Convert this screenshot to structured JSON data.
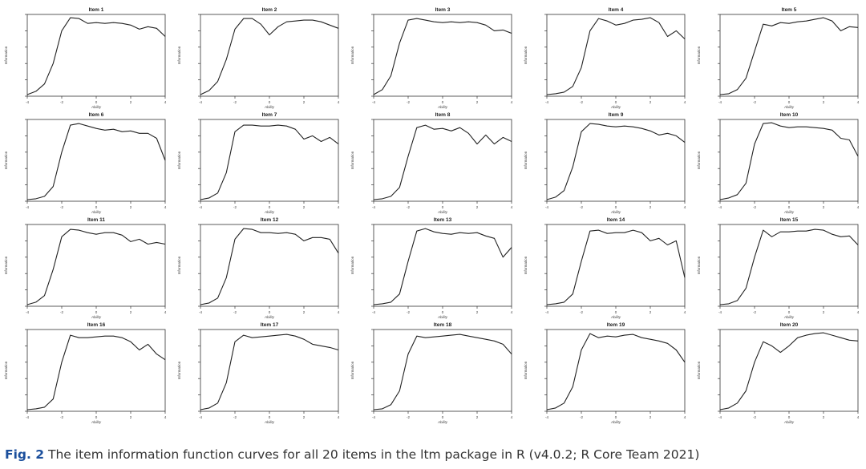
{
  "figure": {
    "caption_label": "Fig. 2",
    "caption_text": "The item information function curves for all 20 items in the ltm package in R (v4.0.2; R Core Team 2021)"
  },
  "colors": {
    "caption_label": "#1b4f9c",
    "caption_text": "#333333",
    "curve": "#222222",
    "axis": "#333333"
  },
  "chart_data": [
    {
      "type": "line",
      "title": "Item 1",
      "xlabel": "Ability",
      "ylabel": "Information",
      "xlim": [
        -4,
        4
      ],
      "ylim": [
        0,
        1
      ],
      "xticks": [
        -4,
        -2,
        0,
        2,
        4
      ],
      "x": [
        -4,
        -3.5,
        -3,
        -2.5,
        -2,
        -1.5,
        -1,
        -0.5,
        0,
        0.5,
        1,
        1.5,
        2,
        2.5,
        3,
        3.5,
        4
      ],
      "y": [
        0.02,
        0.06,
        0.15,
        0.4,
        0.8,
        0.96,
        0.95,
        0.89,
        0.9,
        0.89,
        0.9,
        0.89,
        0.87,
        0.82,
        0.85,
        0.83,
        0.73
      ]
    },
    {
      "type": "line",
      "title": "Item 2",
      "xlabel": "Ability",
      "ylabel": "Information",
      "xlim": [
        -4,
        4
      ],
      "ylim": [
        0,
        1
      ],
      "xticks": [
        -4,
        -2,
        0,
        2,
        4
      ],
      "x": [
        -4,
        -3.5,
        -3,
        -2.5,
        -2,
        -1.5,
        -1,
        -0.5,
        0,
        0.5,
        1,
        1.5,
        2,
        2.5,
        3,
        3.5,
        4
      ],
      "y": [
        0.02,
        0.07,
        0.18,
        0.45,
        0.82,
        0.95,
        0.95,
        0.88,
        0.75,
        0.85,
        0.91,
        0.92,
        0.93,
        0.93,
        0.91,
        0.87,
        0.83
      ]
    },
    {
      "type": "line",
      "title": "Item 3",
      "xlabel": "Ability",
      "ylabel": "Information",
      "xlim": [
        -4,
        4
      ],
      "ylim": [
        0,
        1
      ],
      "xticks": [
        -4,
        -2,
        0,
        2,
        4
      ],
      "x": [
        -4,
        -3.5,
        -3,
        -2.5,
        -2,
        -1.5,
        -1,
        -0.5,
        0,
        0.5,
        1,
        1.5,
        2,
        2.5,
        3,
        3.5,
        4
      ],
      "y": [
        0.02,
        0.08,
        0.25,
        0.65,
        0.93,
        0.95,
        0.93,
        0.91,
        0.9,
        0.91,
        0.9,
        0.91,
        0.9,
        0.87,
        0.8,
        0.81,
        0.77
      ]
    },
    {
      "type": "line",
      "title": "Item 4",
      "xlabel": "Ability",
      "ylabel": "Information",
      "xlim": [
        -4,
        4
      ],
      "ylim": [
        0,
        1
      ],
      "xticks": [
        -4,
        -2,
        0,
        2,
        4
      ],
      "x": [
        -4,
        -3.5,
        -3,
        -2.5,
        -2,
        -1.5,
        -1,
        -0.5,
        0,
        0.5,
        1,
        1.5,
        2,
        2.5,
        3,
        3.5,
        4
      ],
      "y": [
        0.02,
        0.03,
        0.05,
        0.12,
        0.35,
        0.8,
        0.95,
        0.92,
        0.87,
        0.89,
        0.93,
        0.94,
        0.96,
        0.9,
        0.73,
        0.8,
        0.7
      ]
    },
    {
      "type": "line",
      "title": "Item 5",
      "xlabel": "Ability",
      "ylabel": "Information",
      "xlim": [
        -4,
        4
      ],
      "ylim": [
        0,
        1
      ],
      "xticks": [
        -4,
        -2,
        0,
        2,
        4
      ],
      "x": [
        -4,
        -3.5,
        -3,
        -2.5,
        -2,
        -1.5,
        -1,
        -0.5,
        0,
        0.5,
        1,
        1.5,
        2,
        2.5,
        3,
        3.5,
        4
      ],
      "y": [
        0.02,
        0.03,
        0.08,
        0.22,
        0.55,
        0.88,
        0.86,
        0.9,
        0.89,
        0.91,
        0.92,
        0.94,
        0.96,
        0.92,
        0.8,
        0.85,
        0.84
      ]
    },
    {
      "type": "line",
      "title": "Item 6",
      "xlabel": "Ability",
      "ylabel": "Information",
      "xlim": [
        -4,
        4
      ],
      "ylim": [
        0,
        1
      ],
      "xticks": [
        -4,
        -2,
        0,
        2,
        4
      ],
      "x": [
        -4,
        -3.5,
        -3,
        -2.5,
        -2,
        -1.5,
        -1,
        -0.5,
        0,
        0.5,
        1,
        1.5,
        2,
        2.5,
        3,
        3.5,
        4
      ],
      "y": [
        0.02,
        0.03,
        0.06,
        0.18,
        0.6,
        0.93,
        0.95,
        0.92,
        0.89,
        0.87,
        0.88,
        0.85,
        0.86,
        0.83,
        0.83,
        0.77,
        0.5
      ]
    },
    {
      "type": "line",
      "title": "Item 7",
      "xlabel": "Ability",
      "ylabel": "Information",
      "xlim": [
        -4,
        4
      ],
      "ylim": [
        0,
        1
      ],
      "xticks": [
        -4,
        -2,
        0,
        2,
        4
      ],
      "x": [
        -4,
        -3.5,
        -3,
        -2.5,
        -2,
        -1.5,
        -1,
        -0.5,
        0,
        0.5,
        1,
        1.5,
        2,
        2.5,
        3,
        3.5,
        4
      ],
      "y": [
        0.02,
        0.04,
        0.1,
        0.35,
        0.85,
        0.93,
        0.93,
        0.92,
        0.92,
        0.93,
        0.92,
        0.88,
        0.76,
        0.8,
        0.73,
        0.78,
        0.7
      ]
    },
    {
      "type": "line",
      "title": "Item 8",
      "xlabel": "Ability",
      "ylabel": "Information",
      "xlim": [
        -4,
        4
      ],
      "ylim": [
        0,
        1
      ],
      "xticks": [
        -4,
        -2,
        0,
        2,
        4
      ],
      "x": [
        -4,
        -3.5,
        -3,
        -2.5,
        -2,
        -1.5,
        -1,
        -0.5,
        0,
        0.5,
        1,
        1.5,
        2,
        2.5,
        3,
        3.5,
        4
      ],
      "y": [
        0.02,
        0.03,
        0.06,
        0.17,
        0.55,
        0.9,
        0.93,
        0.88,
        0.89,
        0.86,
        0.9,
        0.83,
        0.7,
        0.81,
        0.7,
        0.78,
        0.73
      ]
    },
    {
      "type": "line",
      "title": "Item 9",
      "xlabel": "Ability",
      "ylabel": "Information",
      "xlim": [
        -4,
        4
      ],
      "ylim": [
        0,
        1
      ],
      "xticks": [
        -4,
        -2,
        0,
        2,
        4
      ],
      "x": [
        -4,
        -3.5,
        -3,
        -2.5,
        -2,
        -1.5,
        -1,
        -0.5,
        0,
        0.5,
        1,
        1.5,
        2,
        2.5,
        3,
        3.5,
        4
      ],
      "y": [
        0.02,
        0.05,
        0.13,
        0.42,
        0.85,
        0.95,
        0.94,
        0.92,
        0.91,
        0.92,
        0.91,
        0.89,
        0.86,
        0.81,
        0.83,
        0.8,
        0.72
      ]
    },
    {
      "type": "line",
      "title": "Item 10",
      "xlabel": "Ability",
      "ylabel": "Information",
      "xlim": [
        -4,
        4
      ],
      "ylim": [
        0,
        1
      ],
      "xticks": [
        -4,
        -2,
        0,
        2,
        4
      ],
      "x": [
        -4,
        -3.5,
        -3,
        -2.5,
        -2,
        -1.5,
        -1,
        -0.5,
        0,
        0.5,
        1,
        1.5,
        2,
        2.5,
        3,
        3.5,
        4
      ],
      "y": [
        0.02,
        0.04,
        0.08,
        0.22,
        0.7,
        0.95,
        0.96,
        0.92,
        0.9,
        0.91,
        0.91,
        0.9,
        0.89,
        0.87,
        0.77,
        0.75,
        0.55
      ]
    },
    {
      "type": "line",
      "title": "Item 11",
      "xlabel": "Ability",
      "ylabel": "Information",
      "xlim": [
        -4,
        4
      ],
      "ylim": [
        0,
        1
      ],
      "xticks": [
        -4,
        -2,
        0,
        2,
        4
      ],
      "x": [
        -4,
        -3.5,
        -3,
        -2.5,
        -2,
        -1.5,
        -1,
        -0.5,
        0,
        0.5,
        1,
        1.5,
        2,
        2.5,
        3,
        3.5,
        4
      ],
      "y": [
        0.02,
        0.05,
        0.13,
        0.45,
        0.85,
        0.94,
        0.93,
        0.9,
        0.88,
        0.9,
        0.9,
        0.87,
        0.79,
        0.82,
        0.76,
        0.78,
        0.76
      ]
    },
    {
      "type": "line",
      "title": "Item 12",
      "xlabel": "Ability",
      "ylabel": "Information",
      "xlim": [
        -4,
        4
      ],
      "ylim": [
        0,
        1
      ],
      "xticks": [
        -4,
        -2,
        0,
        2,
        4
      ],
      "x": [
        -4,
        -3.5,
        -3,
        -2.5,
        -2,
        -1.5,
        -1,
        -0.5,
        0,
        0.5,
        1,
        1.5,
        2,
        2.5,
        3,
        3.5,
        4
      ],
      "y": [
        0.02,
        0.04,
        0.1,
        0.35,
        0.82,
        0.95,
        0.94,
        0.9,
        0.9,
        0.89,
        0.9,
        0.88,
        0.8,
        0.84,
        0.84,
        0.82,
        0.65
      ]
    },
    {
      "type": "line",
      "title": "Item 13",
      "xlabel": "Ability",
      "ylabel": "Information",
      "xlim": [
        -4,
        4
      ],
      "ylim": [
        0,
        1
      ],
      "xticks": [
        -4,
        -2,
        0,
        2,
        4
      ],
      "x": [
        -4,
        -3.5,
        -3,
        -2.5,
        -2,
        -1.5,
        -1,
        -0.5,
        0,
        0.5,
        1,
        1.5,
        2,
        2.5,
        3,
        3.5,
        4
      ],
      "y": [
        0.02,
        0.03,
        0.05,
        0.15,
        0.55,
        0.92,
        0.95,
        0.91,
        0.89,
        0.88,
        0.9,
        0.89,
        0.9,
        0.86,
        0.83,
        0.6,
        0.72
      ]
    },
    {
      "type": "line",
      "title": "Item 14",
      "xlabel": "Ability",
      "ylabel": "Information",
      "xlim": [
        -4,
        4
      ],
      "ylim": [
        0,
        1
      ],
      "xticks": [
        -4,
        -2,
        0,
        2,
        4
      ],
      "x": [
        -4,
        -3.5,
        -3,
        -2.5,
        -2,
        -1.5,
        -1,
        -0.5,
        0,
        0.5,
        1,
        1.5,
        2,
        2.5,
        3,
        3.5,
        4
      ],
      "y": [
        0.02,
        0.03,
        0.05,
        0.15,
        0.55,
        0.92,
        0.93,
        0.89,
        0.9,
        0.9,
        0.93,
        0.9,
        0.8,
        0.83,
        0.75,
        0.8,
        0.35
      ]
    },
    {
      "type": "line",
      "title": "Item 15",
      "xlabel": "Ability",
      "ylabel": "Information",
      "xlim": [
        -4,
        4
      ],
      "ylim": [
        0,
        1
      ],
      "xticks": [
        -4,
        -2,
        0,
        2,
        4
      ],
      "x": [
        -4,
        -3.5,
        -3,
        -2.5,
        -2,
        -1.5,
        -1,
        -0.5,
        0,
        0.5,
        1,
        1.5,
        2,
        2.5,
        3,
        3.5,
        4
      ],
      "y": [
        0.02,
        0.03,
        0.07,
        0.22,
        0.6,
        0.93,
        0.85,
        0.91,
        0.91,
        0.92,
        0.92,
        0.94,
        0.93,
        0.88,
        0.85,
        0.86,
        0.75
      ]
    },
    {
      "type": "line",
      "title": "Item 16",
      "xlabel": "Ability",
      "ylabel": "Information",
      "xlim": [
        -4,
        4
      ],
      "ylim": [
        0,
        1
      ],
      "xticks": [
        -4,
        -2,
        0,
        2,
        4
      ],
      "x": [
        -4,
        -3.5,
        -3,
        -2.5,
        -2,
        -1.5,
        -1,
        -0.5,
        0,
        0.5,
        1,
        1.5,
        2,
        2.5,
        3,
        3.5,
        4
      ],
      "y": [
        0.02,
        0.03,
        0.05,
        0.15,
        0.6,
        0.93,
        0.9,
        0.9,
        0.91,
        0.92,
        0.92,
        0.9,
        0.85,
        0.75,
        0.82,
        0.7,
        0.63
      ]
    },
    {
      "type": "line",
      "title": "Item 17",
      "xlabel": "Ability",
      "ylabel": "Information",
      "xlim": [
        -4,
        4
      ],
      "ylim": [
        0,
        1
      ],
      "xticks": [
        -4,
        -2,
        0,
        2,
        4
      ],
      "x": [
        -4,
        -3.5,
        -3,
        -2.5,
        -2,
        -1.5,
        -1,
        -0.5,
        0,
        0.5,
        1,
        1.5,
        2,
        2.5,
        3,
        3.5,
        4
      ],
      "y": [
        0.02,
        0.04,
        0.1,
        0.35,
        0.85,
        0.93,
        0.9,
        0.91,
        0.92,
        0.93,
        0.94,
        0.92,
        0.88,
        0.82,
        0.8,
        0.78,
        0.75
      ]
    },
    {
      "type": "line",
      "title": "Item 18",
      "xlabel": "Ability",
      "ylabel": "Information",
      "xlim": [
        -4,
        4
      ],
      "ylim": [
        0,
        1
      ],
      "xticks": [
        -4,
        -2,
        0,
        2,
        4
      ],
      "x": [
        -4,
        -3.5,
        -3,
        -2.5,
        -2,
        -1.5,
        -1,
        -0.5,
        0,
        0.5,
        1,
        1.5,
        2,
        2.5,
        3,
        3.5,
        4
      ],
      "y": [
        0.02,
        0.03,
        0.08,
        0.25,
        0.7,
        0.92,
        0.9,
        0.91,
        0.92,
        0.93,
        0.94,
        0.92,
        0.9,
        0.88,
        0.86,
        0.82,
        0.7
      ]
    },
    {
      "type": "line",
      "title": "Item 19",
      "xlabel": "Ability",
      "ylabel": "Information",
      "xlim": [
        -4,
        4
      ],
      "ylim": [
        0,
        1
      ],
      "xticks": [
        -4,
        -2,
        0,
        2,
        4
      ],
      "x": [
        -4,
        -3.5,
        -3,
        -2.5,
        -2,
        -1.5,
        -1,
        -0.5,
        0,
        0.5,
        1,
        1.5,
        2,
        2.5,
        3,
        3.5,
        4
      ],
      "y": [
        0.02,
        0.04,
        0.1,
        0.3,
        0.75,
        0.95,
        0.9,
        0.92,
        0.91,
        0.93,
        0.94,
        0.9,
        0.88,
        0.86,
        0.83,
        0.75,
        0.6
      ]
    },
    {
      "type": "line",
      "title": "Item 20",
      "xlabel": "Ability",
      "ylabel": "Information",
      "xlim": [
        -4,
        4
      ],
      "ylim": [
        0,
        1
      ],
      "xticks": [
        -4,
        -2,
        0,
        2,
        4
      ],
      "x": [
        -4,
        -3.5,
        -3,
        -2.5,
        -2,
        -1.5,
        -1,
        -0.5,
        0,
        0.5,
        1,
        1.5,
        2,
        2.5,
        3,
        3.5,
        4
      ],
      "y": [
        0.02,
        0.04,
        0.1,
        0.25,
        0.6,
        0.85,
        0.8,
        0.72,
        0.8,
        0.9,
        0.93,
        0.95,
        0.96,
        0.93,
        0.9,
        0.87,
        0.86
      ]
    }
  ]
}
